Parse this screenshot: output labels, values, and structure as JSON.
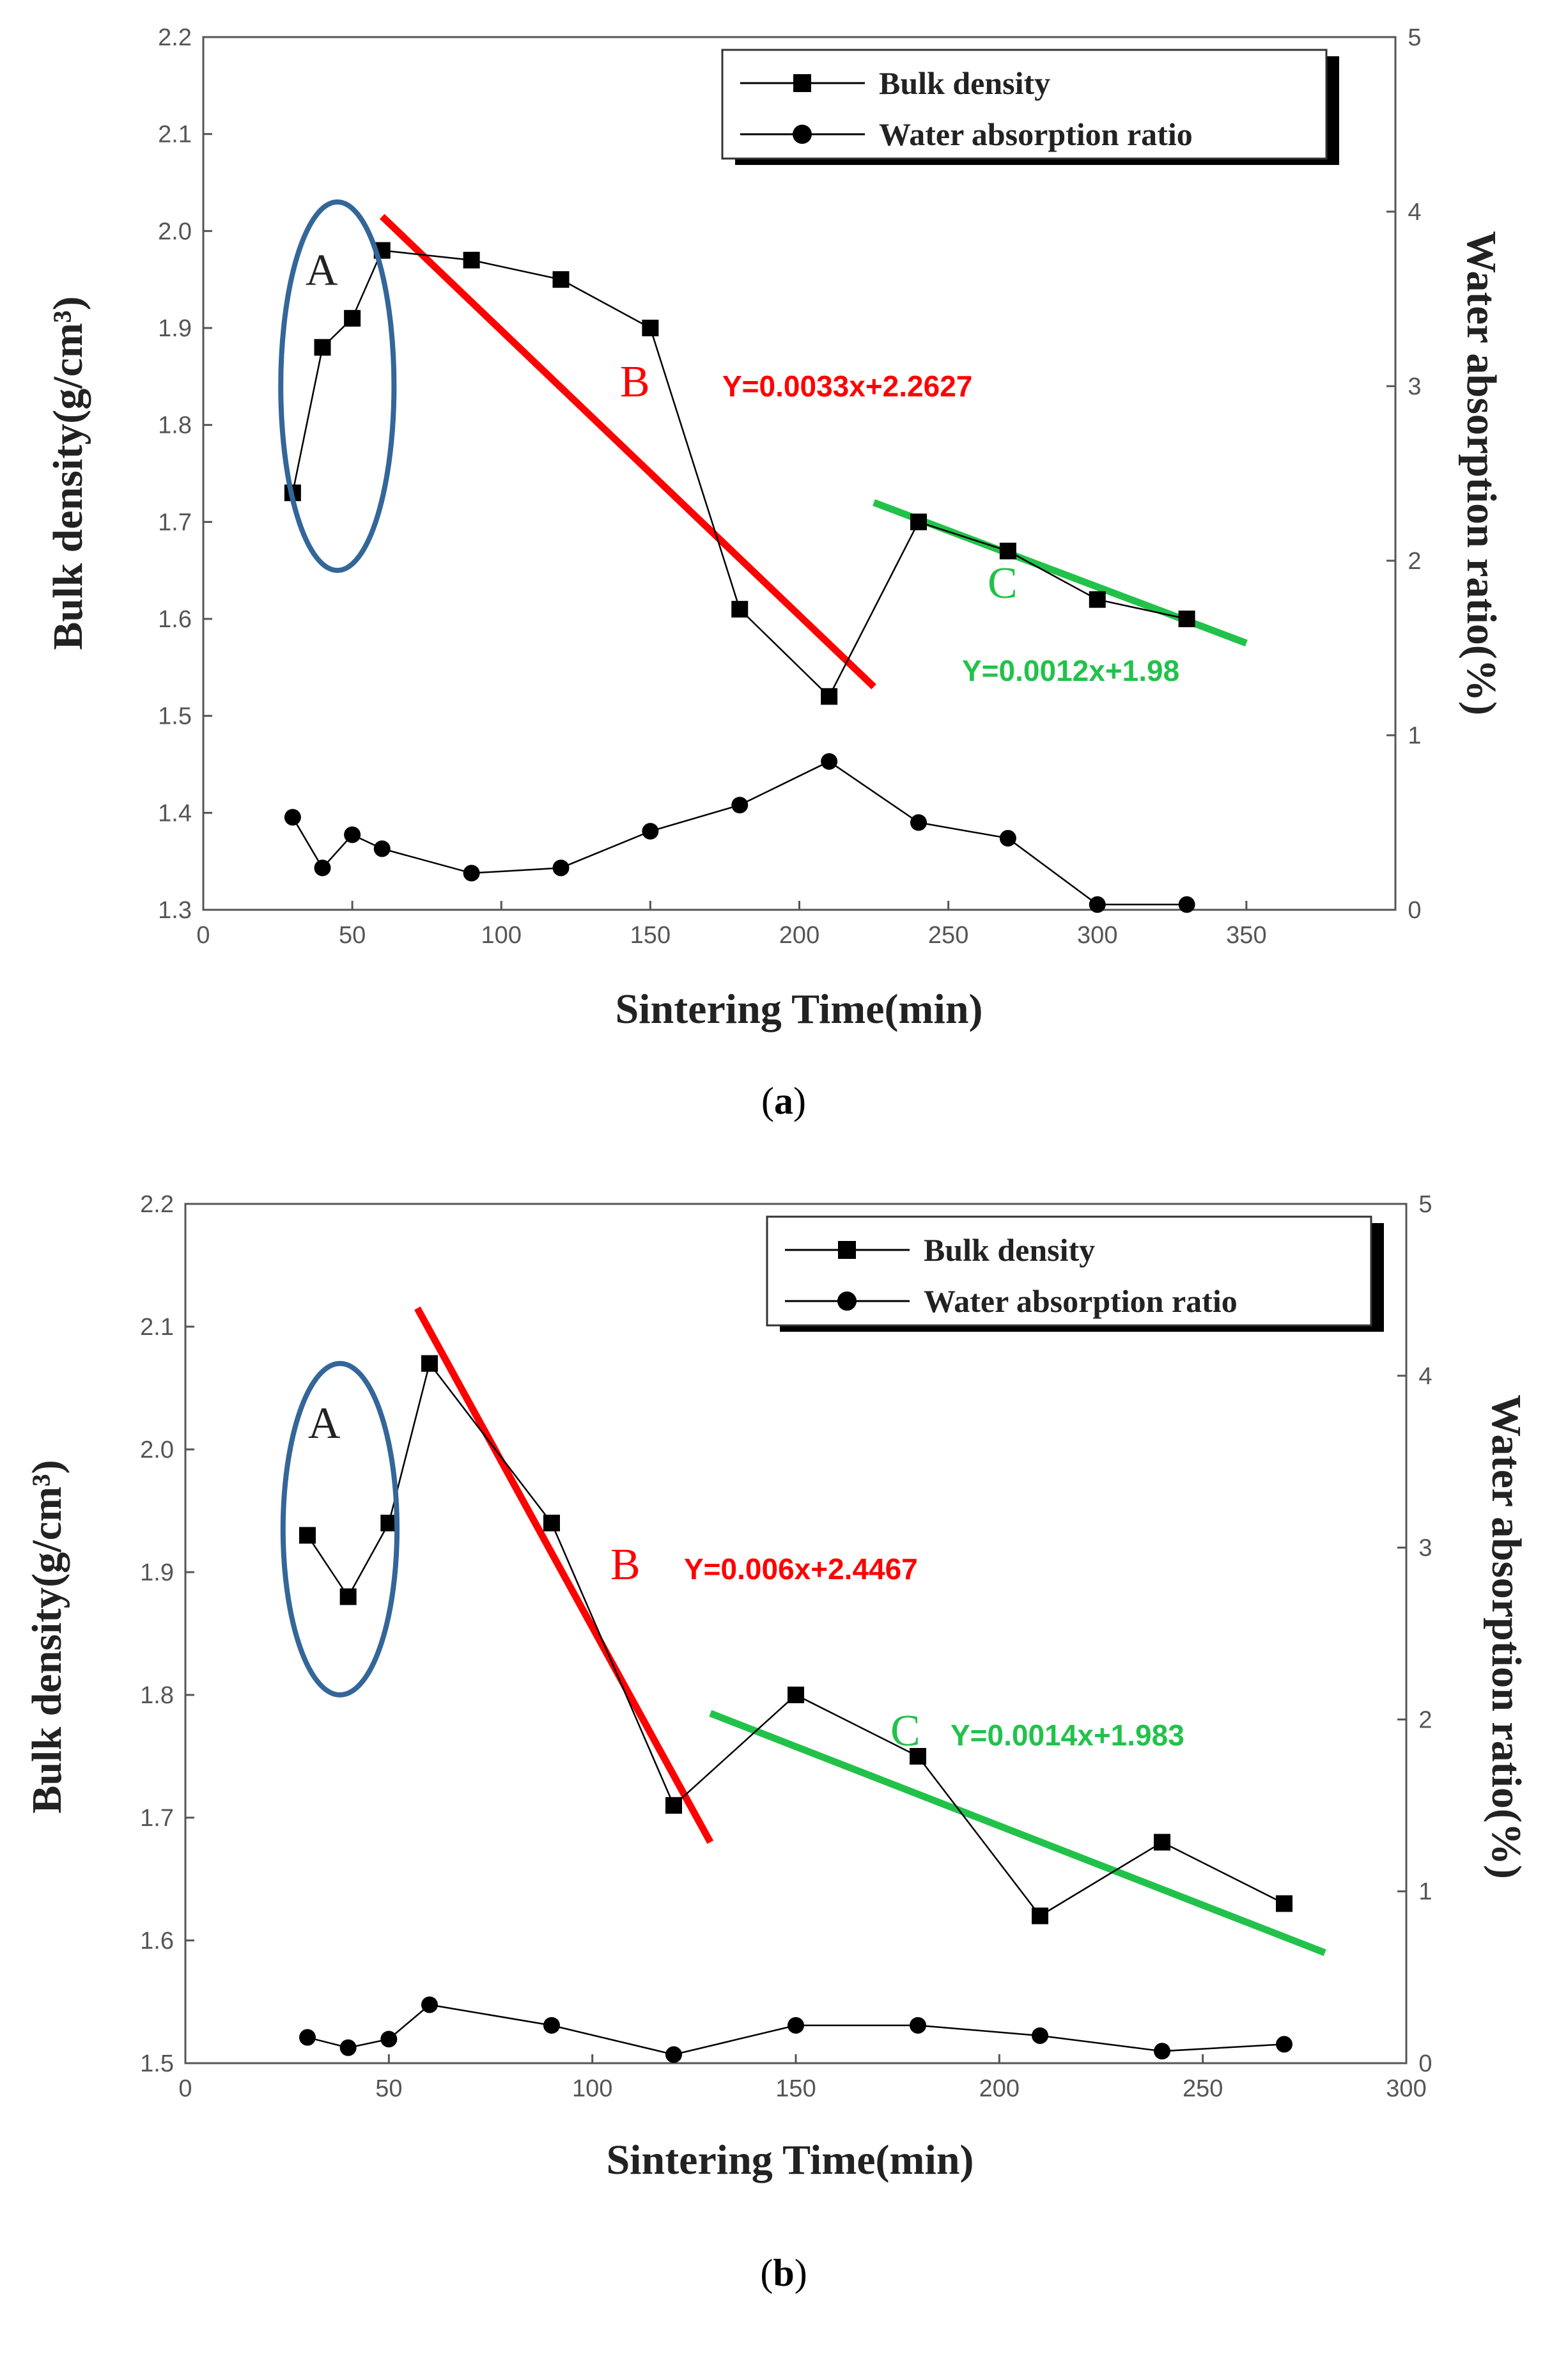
{
  "chart_data": [
    {
      "type": "line",
      "caption_letter": "a",
      "xlabel": "Sintering Time(min)",
      "ylabel": "Bulk density(g/cm³)",
      "y2label": "Water absorption ratio(%)",
      "xlim": [
        0,
        400
      ],
      "ylim": [
        1.3,
        2.2
      ],
      "y2lim": [
        0,
        5
      ],
      "xticks": [
        0,
        50,
        100,
        150,
        200,
        250,
        300,
        350
      ],
      "yticks": [
        1.3,
        1.4,
        1.5,
        1.6,
        1.7,
        1.8,
        1.9,
        2.0,
        2.1,
        2.2
      ],
      "y2ticks": [
        0,
        1,
        2,
        3,
        4,
        5
      ],
      "legend_position": "top-right",
      "series": [
        {
          "name": "Bulk density",
          "marker": "square",
          "axis": "left",
          "x": [
            30,
            40,
            50,
            60,
            90,
            120,
            150,
            180,
            210,
            240,
            270,
            300,
            330
          ],
          "values": [
            1.73,
            1.88,
            1.91,
            1.98,
            1.97,
            1.95,
            1.9,
            1.61,
            1.52,
            1.7,
            1.67,
            1.62,
            1.6
          ]
        },
        {
          "name": "Water absorption ratio",
          "marker": "circle",
          "axis": "right",
          "x": [
            30,
            40,
            50,
            60,
            90,
            120,
            150,
            180,
            210,
            240,
            270,
            300,
            330
          ],
          "values": [
            0.53,
            0.24,
            0.43,
            0.35,
            0.21,
            0.24,
            0.45,
            0.6,
            0.85,
            0.5,
            0.41,
            0.03,
            0.03
          ]
        }
      ],
      "fit_lines": [
        {
          "label": "B",
          "equation": "Y=0.0033x+2.2627",
          "color": "#ff0000",
          "x": [
            60,
            225
          ],
          "y": [
            2.015,
            1.53
          ]
        },
        {
          "label": "C",
          "equation": "Y=0.0012x+1.98",
          "color": "#22c24a",
          "x": [
            225,
            350
          ],
          "y": [
            1.72,
            1.575
          ]
        }
      ],
      "region_a": {
        "label": "A",
        "color": "#336699",
        "center_x": 45,
        "center_y": 1.84,
        "radius_x": 19,
        "radius_y": 0.19
      }
    },
    {
      "type": "line",
      "caption_letter": "b",
      "xlabel": "Sintering Time(min)",
      "ylabel": "Bulk density(g/cm³)",
      "y2label": "Water absorption ratio(%)",
      "xlim": [
        0,
        300
      ],
      "ylim": [
        1.5,
        2.2
      ],
      "y2lim": [
        0,
        5
      ],
      "xticks": [
        0,
        50,
        100,
        150,
        200,
        250,
        300
      ],
      "yticks": [
        1.5,
        1.6,
        1.7,
        1.8,
        1.9,
        2.0,
        2.1,
        2.2
      ],
      "y2ticks": [
        0,
        1,
        2,
        3,
        4,
        5
      ],
      "legend_position": "top-right",
      "series": [
        {
          "name": "Bulk density",
          "marker": "square",
          "axis": "left",
          "x": [
            30,
            40,
            50,
            60,
            90,
            120,
            150,
            180,
            210,
            240,
            270
          ],
          "values": [
            1.93,
            1.88,
            1.94,
            2.07,
            1.94,
            1.71,
            1.8,
            1.75,
            1.62,
            1.68,
            1.63
          ]
        },
        {
          "name": "Water absorption ratio",
          "marker": "circle",
          "axis": "right",
          "x": [
            30,
            40,
            50,
            60,
            90,
            120,
            150,
            180,
            210,
            240,
            270
          ],
          "values": [
            0.15,
            0.09,
            0.14,
            0.34,
            0.22,
            0.05,
            0.22,
            0.22,
            0.16,
            0.07,
            0.11
          ]
        }
      ],
      "fit_lines": [
        {
          "label": "B",
          "equation": "Y=0.006x+2.4467",
          "color": "#ff0000",
          "x": [
            57,
            129
          ],
          "y": [
            2.115,
            1.68
          ]
        },
        {
          "label": "C",
          "equation": "Y=0.0014x+1.983",
          "color": "#22c24a",
          "x": [
            129,
            280
          ],
          "y": [
            1.785,
            1.59
          ]
        }
      ],
      "region_a": {
        "label": "A",
        "color": "#336699",
        "center_x": 38,
        "center_y": 1.935,
        "radius_x": 14,
        "radius_y": 0.135
      }
    }
  ]
}
